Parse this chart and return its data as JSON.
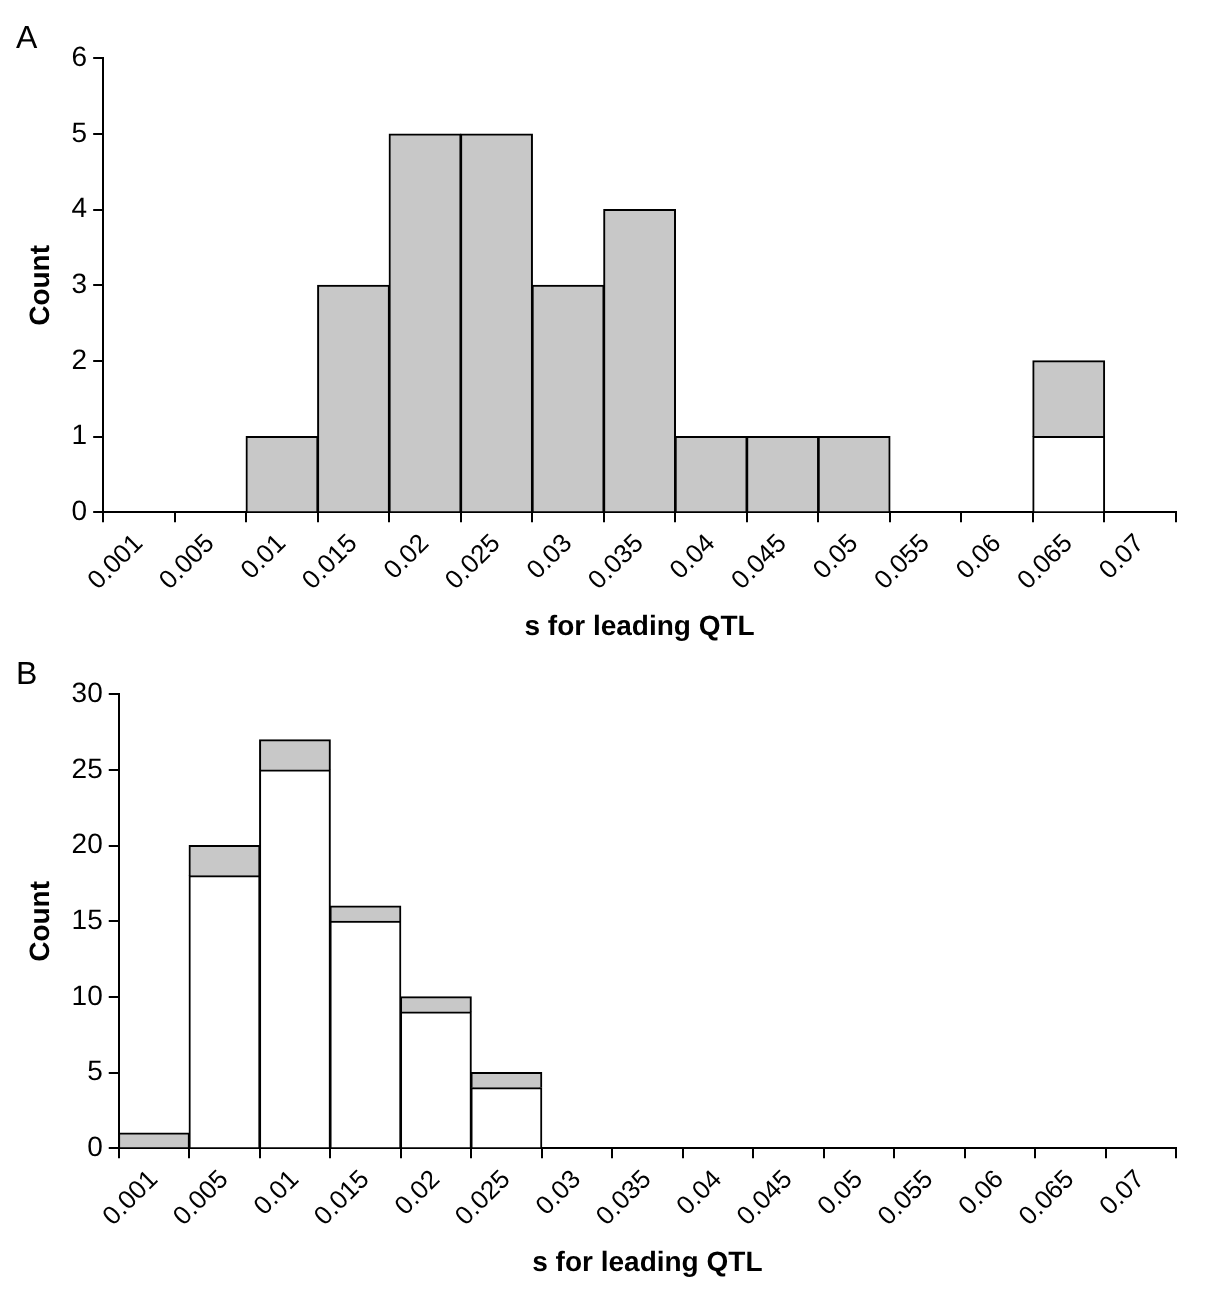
{
  "chart_data": [
    {
      "type": "bar",
      "title": "A",
      "xlabel": "s for leading QTL",
      "ylabel": "Count",
      "stacked": true,
      "categories": [
        "0.001",
        "0.005",
        "0.01",
        "0.015",
        "0.02",
        "0.025",
        "0.03",
        "0.035",
        "0.04",
        "0.045",
        "0.05",
        "0.055",
        "0.06",
        "0.065",
        "0.07"
      ],
      "series": [
        {
          "color": "#ffffff",
          "values": [
            0,
            0,
            0,
            0,
            0,
            0,
            0,
            0,
            0,
            0,
            0,
            0,
            0,
            1,
            0
          ]
        },
        {
          "color": "#c8c8c8",
          "values": [
            0,
            0,
            1,
            3,
            5,
            5,
            3,
            4,
            1,
            1,
            1,
            0,
            0,
            1,
            0
          ]
        }
      ],
      "ylim": [
        0,
        6
      ],
      "yticks": [
        0,
        1,
        2,
        3,
        4,
        5,
        6
      ]
    },
    {
      "type": "bar",
      "title": "B",
      "xlabel": "s for leading QTL",
      "ylabel": "Count",
      "stacked": true,
      "categories": [
        "0.001",
        "0.005",
        "0.01",
        "0.015",
        "0.02",
        "0.025",
        "0.03",
        "0.035",
        "0.04",
        "0.045",
        "0.05",
        "0.055",
        "0.06",
        "0.065",
        "0.07"
      ],
      "series": [
        {
          "color": "#ffffff",
          "values": [
            0,
            18,
            25,
            15,
            9,
            4,
            0,
            0,
            0,
            0,
            0,
            0,
            0,
            0,
            0
          ]
        },
        {
          "color": "#c8c8c8",
          "values": [
            1,
            2,
            2,
            1,
            1,
            1,
            0,
            0,
            0,
            0,
            0,
            0,
            0,
            0,
            0
          ]
        }
      ],
      "ylim": [
        0,
        30
      ],
      "yticks": [
        0,
        5,
        10,
        15,
        20,
        25,
        30
      ]
    }
  ]
}
